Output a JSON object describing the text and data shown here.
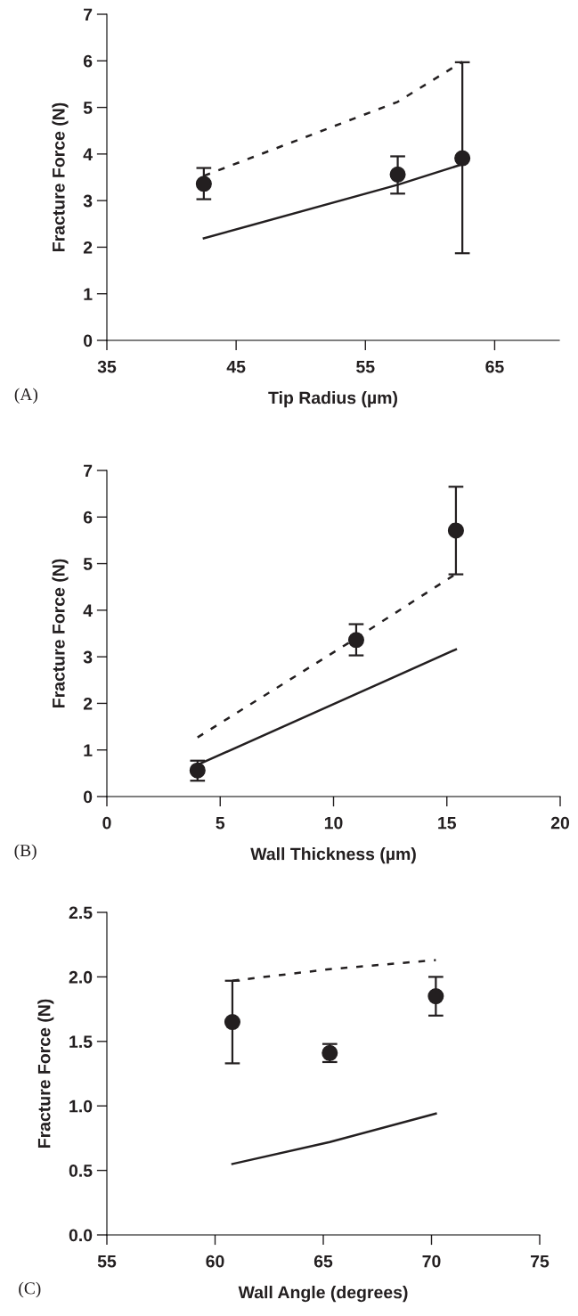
{
  "chart_data": [
    {
      "type": "scatter",
      "xlabel": "Tip Radius (µm)",
      "ylabel": "Fracture Force (N)",
      "annotations": [
        "(A)"
      ],
      "xlim": [
        35,
        70
      ],
      "xticks": [
        35,
        45,
        55,
        65
      ],
      "ylim": [
        0,
        7
      ],
      "yticks": [
        0,
        1,
        2,
        3,
        4,
        5,
        6,
        7
      ],
      "grid": false,
      "legend": false,
      "series": [
        {
          "color": "#231f20",
          "marker": "circle",
          "x": [
            42.5,
            57.5,
            62.5
          ],
          "values": [
            3.36,
            3.56,
            3.91
          ],
          "errors": [
            [
              3.03,
              3.7
            ],
            [
              3.15,
              3.95
            ],
            [
              1.87,
              5.97
            ]
          ]
        },
        {
          "type": "line",
          "color": "#231f20",
          "line_style": "dashed",
          "marker": "none",
          "x": [
            42.5,
            57.5,
            62.5
          ],
          "values": [
            3.53,
            5.12,
            5.98
          ]
        },
        {
          "type": "line",
          "color": "#231f20",
          "line_style": "solid",
          "marker": "none",
          "x": [
            42.5,
            57.5,
            62.5
          ],
          "values": [
            2.19,
            3.34,
            3.78
          ]
        }
      ]
    },
    {
      "type": "scatter",
      "xlabel": "Wall Thickness (µm)",
      "ylabel": "Fracture Force (N)",
      "annotations": [
        "(B)"
      ],
      "xlim": [
        0,
        20
      ],
      "xticks": [
        0,
        5,
        10,
        15,
        20
      ],
      "ylim": [
        0,
        7
      ],
      "yticks": [
        0,
        1,
        2,
        3,
        4,
        5,
        6,
        7
      ],
      "grid": false,
      "legend": false,
      "series": [
        {
          "color": "#231f20",
          "marker": "circle",
          "x": [
            4.0,
            11.0,
            15.4
          ],
          "values": [
            0.56,
            3.36,
            5.71
          ],
          "errors": [
            [
              0.34,
              0.77
            ],
            [
              3.03,
              3.7
            ],
            [
              4.77,
              6.65
            ]
          ]
        },
        {
          "type": "line",
          "color": "#231f20",
          "line_style": "dashed",
          "marker": "none",
          "x": [
            4.0,
            11.0,
            15.4
          ],
          "values": [
            1.27,
            3.4,
            4.78
          ]
        },
        {
          "type": "line",
          "color": "#231f20",
          "line_style": "solid",
          "marker": "none",
          "x": [
            4.0,
            11.0,
            15.4
          ],
          "values": [
            0.68,
            2.2,
            3.16
          ]
        }
      ]
    },
    {
      "type": "scatter",
      "xlabel": "Wall Angle (degrees)",
      "ylabel": "Fracture Force (N)",
      "annotations": [
        "(C)"
      ],
      "xlim": [
        55,
        75
      ],
      "xticks": [
        55,
        60,
        65,
        70,
        75
      ],
      "ylim": [
        0.0,
        2.5
      ],
      "yticks": [
        {
          "value": 0,
          "label": "0.0"
        },
        0.5,
        {
          "value": 1,
          "label": "1.0"
        },
        1.5,
        {
          "value": 2,
          "label": "2.0"
        },
        2.5
      ],
      "grid": false,
      "legend": false,
      "series": [
        {
          "color": "#231f20",
          "marker": "circle",
          "x": [
            60.8,
            65.3,
            70.2
          ],
          "values": [
            1.65,
            1.41,
            1.85
          ],
          "errors": [
            [
              1.33,
              1.97
            ],
            [
              1.34,
              1.48
            ],
            [
              1.7,
              2.0
            ]
          ]
        },
        {
          "type": "line",
          "color": "#231f20",
          "line_style": "dashed",
          "marker": "none",
          "x": [
            60.8,
            65.3,
            70.2
          ],
          "values": [
            1.97,
            2.06,
            2.13
          ]
        },
        {
          "type": "line",
          "color": "#231f20",
          "line_style": "solid",
          "marker": "none",
          "x": [
            60.8,
            65.3,
            70.2
          ],
          "values": [
            0.55,
            0.72,
            0.94
          ]
        }
      ]
    }
  ]
}
